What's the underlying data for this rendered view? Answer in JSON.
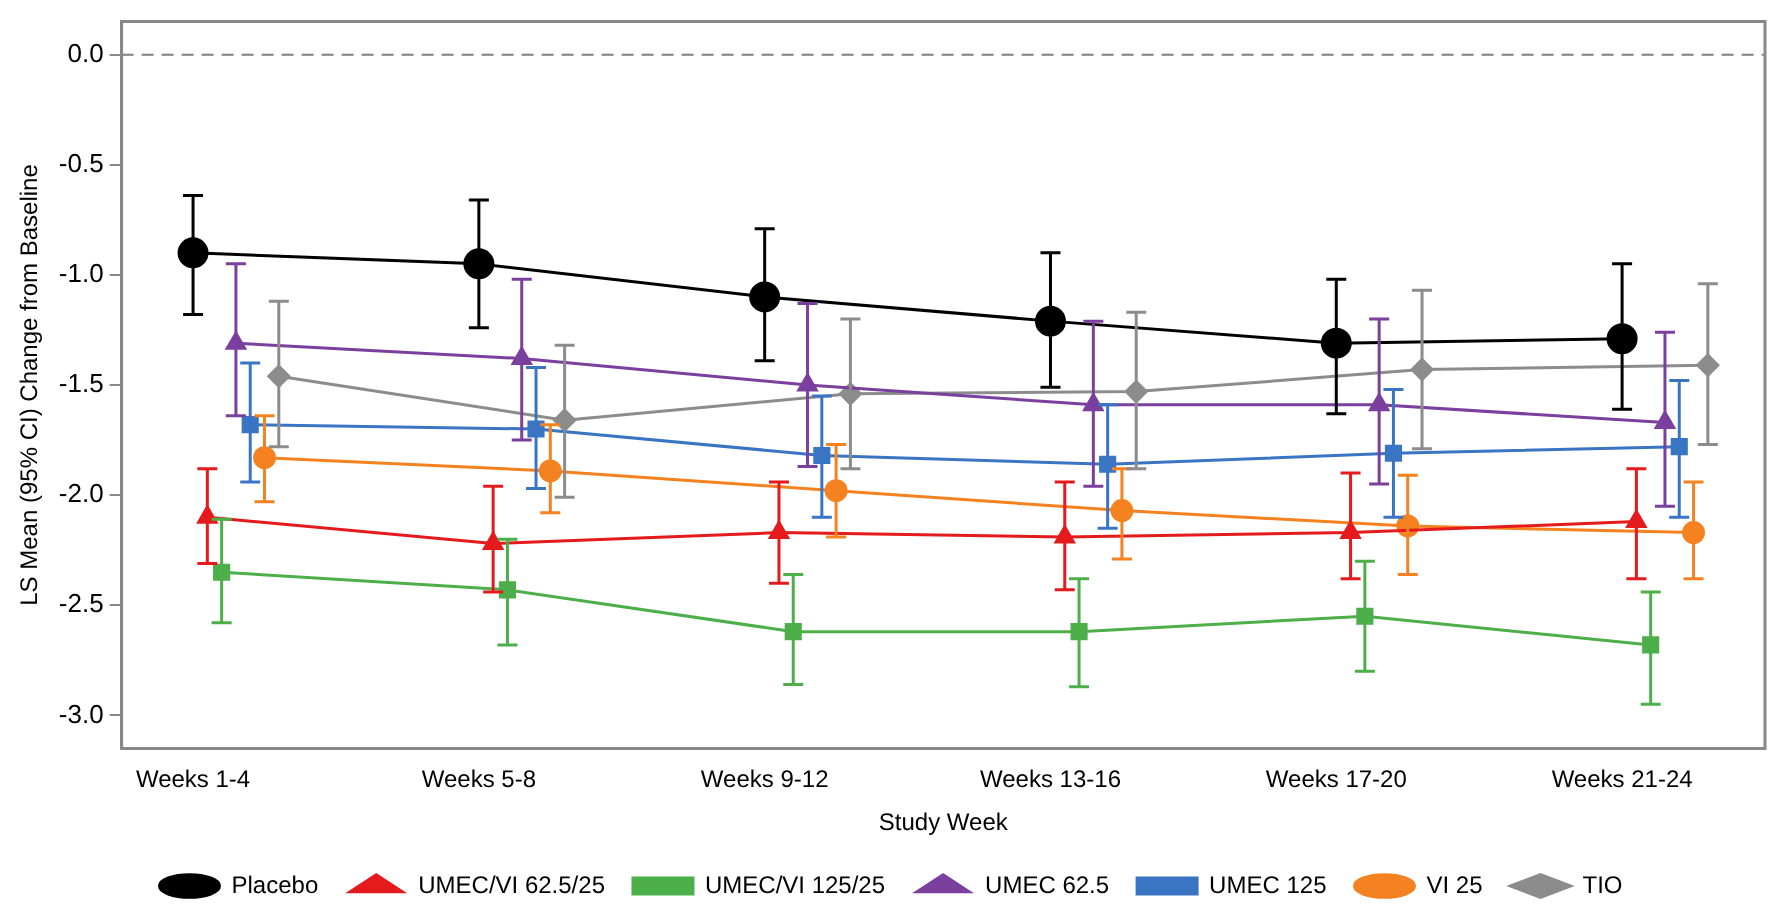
{
  "chart_data": {
    "type": "line",
    "xlabel": "Study Week",
    "ylabel": "LS Mean (95% CI) Change from Baseline",
    "categories": [
      "Weeks 1-4",
      "Weeks 5-8",
      "Weeks 9-12",
      "Weeks 13-16",
      "Weeks 17-20",
      "Weeks 21-24"
    ],
    "ylim": [
      -3.15,
      0.15
    ],
    "yticks": [
      {
        "value": 0,
        "label": "0.0"
      },
      {
        "value": -0.5,
        "label": "-0.5"
      },
      {
        "value": -1,
        "label": "-1.0"
      },
      {
        "value": -1.5,
        "label": "-1.5"
      },
      {
        "value": -2,
        "label": "-2.0"
      },
      {
        "value": -2.5,
        "label": "-2.5"
      },
      {
        "value": -3,
        "label": "-3.0"
      }
    ],
    "grid": false,
    "legend": "bottom",
    "line_style": "solid",
    "ref_lines": [
      {
        "axis": "y",
        "value": 0,
        "color": "#808080",
        "line_style": "dashed"
      }
    ],
    "series": [
      {
        "name": "Placebo",
        "color": "#000000",
        "marker": "circle",
        "values": [
          -0.9,
          -0.95,
          -1.1,
          -1.21,
          -1.31,
          -1.29
        ],
        "errors": [
          [
            -1.18,
            -0.64
          ],
          [
            -1.24,
            -0.66
          ],
          [
            -1.39,
            -0.79
          ],
          [
            -1.51,
            -0.9
          ],
          [
            -1.63,
            -1.02
          ],
          [
            -1.61,
            -0.95
          ]
        ]
      },
      {
        "name": "UMEC/VI 62.5/25",
        "color": "#e41a1c",
        "marker": "triangle",
        "values": [
          -2.1,
          -2.22,
          -2.17,
          -2.19,
          -2.17,
          -2.12
        ],
        "errors": [
          [
            -2.31,
            -1.88
          ],
          [
            -2.44,
            -1.96
          ],
          [
            -2.4,
            -1.94
          ],
          [
            -2.43,
            -1.94
          ],
          [
            -2.38,
            -1.9
          ],
          [
            -2.38,
            -1.88
          ]
        ]
      },
      {
        "name": "UMEC/VI 125/25",
        "color": "#4daf4a",
        "marker": "square",
        "values": [
          -2.35,
          -2.43,
          -2.62,
          -2.62,
          -2.55,
          -2.68
        ],
        "errors": [
          [
            -2.58,
            -2.11
          ],
          [
            -2.68,
            -2.2
          ],
          [
            -2.86,
            -2.36
          ],
          [
            -2.87,
            -2.38
          ],
          [
            -2.8,
            -2.3
          ],
          [
            -2.95,
            -2.44
          ]
        ]
      },
      {
        "name": "UMEC 62.5",
        "color": "#7b3f9e",
        "marker": "triangle",
        "values": [
          -1.31,
          -1.38,
          -1.5,
          -1.59,
          -1.59,
          -1.67
        ],
        "errors": [
          [
            -1.64,
            -0.95
          ],
          [
            -1.75,
            -1.02
          ],
          [
            -1.87,
            -1.13
          ],
          [
            -1.96,
            -1.21
          ],
          [
            -1.95,
            -1.2
          ],
          [
            -2.05,
            -1.26
          ]
        ]
      },
      {
        "name": "UMEC 125",
        "color": "#3a75c4",
        "marker": "square",
        "values": [
          -1.68,
          -1.7,
          -1.82,
          -1.86,
          -1.81,
          -1.78
        ],
        "errors": [
          [
            -1.94,
            -1.4
          ],
          [
            -1.97,
            -1.42
          ],
          [
            -2.1,
            -1.55
          ],
          [
            -2.15,
            -1.59
          ],
          [
            -2.1,
            -1.52
          ],
          [
            -2.1,
            -1.48
          ]
        ]
      },
      {
        "name": "VI 25",
        "color": "#f58220",
        "marker": "circle",
        "values": [
          -1.83,
          -1.89,
          -1.98,
          -2.07,
          -2.14,
          -2.17
        ],
        "errors": [
          [
            -2.03,
            -1.64
          ],
          [
            -2.08,
            -1.68
          ],
          [
            -2.19,
            -1.77
          ],
          [
            -2.29,
            -1.88
          ],
          [
            -2.36,
            -1.91
          ],
          [
            -2.38,
            -1.94
          ]
        ]
      },
      {
        "name": "TIO",
        "color": "#8c8c8c",
        "marker": "diamond",
        "values": [
          -1.46,
          -1.66,
          -1.54,
          -1.53,
          -1.43,
          -1.41
        ],
        "errors": [
          [
            -1.78,
            -1.12
          ],
          [
            -2.01,
            -1.32
          ],
          [
            -1.88,
            -1.2
          ],
          [
            -1.88,
            -1.17
          ],
          [
            -1.79,
            -1.07
          ],
          [
            -1.77,
            -1.04
          ]
        ]
      }
    ]
  }
}
